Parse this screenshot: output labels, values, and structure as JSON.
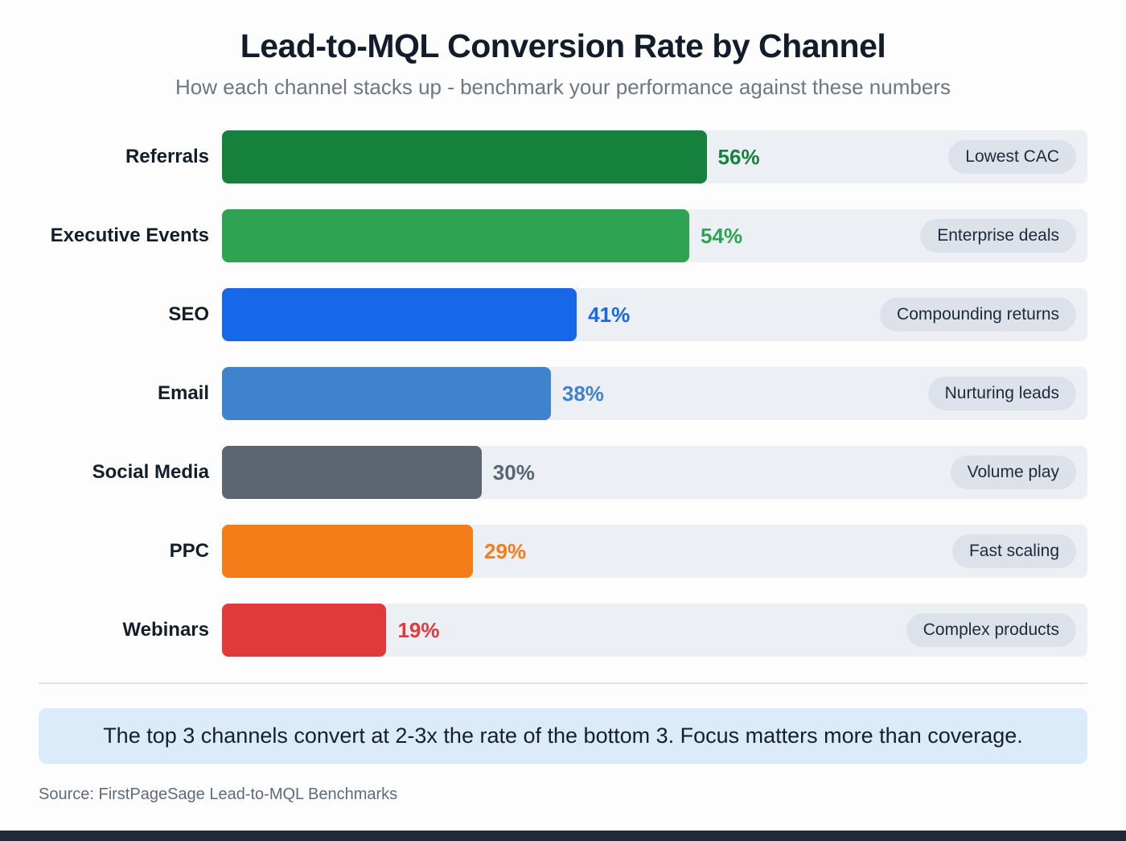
{
  "header": {
    "title": "Lead-to-MQL Conversion Rate by Channel",
    "subtitle": "How each channel stacks up - benchmark your performance against these numbers"
  },
  "insight": "The top 3 channels convert at 2-3x the rate of the bottom 3. Focus matters more than coverage.",
  "source": "Source: FirstPageSage Lead-to-MQL Benchmarks",
  "chart_data": {
    "type": "bar",
    "orientation": "horizontal",
    "title": "Lead-to-MQL Conversion Rate by Channel",
    "subtitle": "How each channel stacks up - benchmark your performance against these numbers",
    "xlabel": "",
    "ylabel": "",
    "xlim": [
      0,
      100
    ],
    "unit": "%",
    "grid": false,
    "legend": false,
    "categories": [
      "Referrals",
      "Executive Events",
      "SEO",
      "Email",
      "Social Media",
      "PPC",
      "Webinars"
    ],
    "values": [
      56,
      54,
      41,
      38,
      30,
      29,
      19
    ],
    "rows": [
      {
        "label": "Referrals",
        "value": 56,
        "display": "56%",
        "tag": "Lowest CAC",
        "color": "#16813c"
      },
      {
        "label": "Executive Events",
        "value": 54,
        "display": "54%",
        "tag": "Enterprise deals",
        "color": "#2ea351"
      },
      {
        "label": "SEO",
        "value": 41,
        "display": "41%",
        "tag": "Compounding returns",
        "color": "#1668e8"
      },
      {
        "label": "Email",
        "value": 38,
        "display": "38%",
        "tag": "Nurturing leads",
        "color": "#3e83cc"
      },
      {
        "label": "Social Media",
        "value": 30,
        "display": "30%",
        "tag": "Volume play",
        "color": "#5b6672"
      },
      {
        "label": "PPC",
        "value": 29,
        "display": "29%",
        "tag": "Fast scaling",
        "color": "#f47d17"
      },
      {
        "label": "Webinars",
        "value": 19,
        "display": "19%",
        "tag": "Complex products",
        "color": "#e03a3a"
      }
    ],
    "colors": {
      "track": "#eceff4",
      "tag_pill": "#dde2ea",
      "insight_background": "#dcebfa",
      "bottom_strip": "#202938"
    }
  }
}
